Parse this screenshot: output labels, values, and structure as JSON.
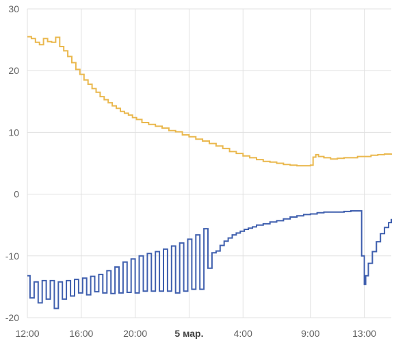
{
  "chart_data": {
    "type": "line",
    "step": true,
    "grid": true,
    "ylim": [
      -20,
      30
    ],
    "yticks": [
      -20,
      -10,
      0,
      10,
      20,
      30
    ],
    "xlim": [
      0,
      27
    ],
    "xticks": [
      {
        "x": 0,
        "label": "12:00"
      },
      {
        "x": 4,
        "label": "16:00"
      },
      {
        "x": 8,
        "label": "20:00"
      },
      {
        "x": 12,
        "label": "5 мар.",
        "bold": true
      },
      {
        "x": 16,
        "label": "4:00"
      },
      {
        "x": 21,
        "label": "9:00"
      },
      {
        "x": 25,
        "label": "13:00"
      }
    ],
    "x_unit_note": "hours from 12:00",
    "series": [
      {
        "color": "#eab84e",
        "x": [
          0,
          0.3,
          0.6,
          0.9,
          1.2,
          1.5,
          1.8,
          2.1,
          2.4,
          2.7,
          3.0,
          3.3,
          3.6,
          3.9,
          4.2,
          4.5,
          4.8,
          5.1,
          5.4,
          5.7,
          6.0,
          6.3,
          6.6,
          6.9,
          7.2,
          7.5,
          7.8,
          8.1,
          8.5,
          9.0,
          9.5,
          10.0,
          10.5,
          11.0,
          11.5,
          12.0,
          12.5,
          13.0,
          13.5,
          14.0,
          14.5,
          15.0,
          15.5,
          16.0,
          16.5,
          17.0,
          17.5,
          18.0,
          18.5,
          19.0,
          19.5,
          20.0,
          20.5,
          21.0,
          21.2,
          21.4,
          21.6,
          22.0,
          22.5,
          23.0,
          23.5,
          24.0,
          24.5,
          25.0,
          25.5,
          26.0,
          26.5,
          27.0
        ],
        "values": [
          25.5,
          25.2,
          24.6,
          24.2,
          25.2,
          24.7,
          24.6,
          25.4,
          23.9,
          23.2,
          22.3,
          21.3,
          20.2,
          19.4,
          18.5,
          17.8,
          17.1,
          16.5,
          15.8,
          15.3,
          14.8,
          14.3,
          13.9,
          13.4,
          13.1,
          12.8,
          12.4,
          12.1,
          11.6,
          11.3,
          11.0,
          10.7,
          10.3,
          10.1,
          9.6,
          9.3,
          8.9,
          8.6,
          8.2,
          7.8,
          7.4,
          6.9,
          6.6,
          6.2,
          5.9,
          5.6,
          5.3,
          5.2,
          5.0,
          4.8,
          4.7,
          4.6,
          4.6,
          4.7,
          6.0,
          6.4,
          6.1,
          5.9,
          5.7,
          5.8,
          5.9,
          5.9,
          6.1,
          6.1,
          6.3,
          6.4,
          6.5,
          6.6
        ]
      },
      {
        "color": "#3f5fae",
        "x": [
          0,
          0.2,
          0.5,
          0.8,
          1.1,
          1.4,
          1.7,
          2.0,
          2.3,
          2.6,
          2.9,
          3.2,
          3.5,
          3.8,
          4.1,
          4.4,
          4.7,
          5.0,
          5.3,
          5.6,
          5.9,
          6.2,
          6.5,
          6.8,
          7.1,
          7.4,
          7.7,
          8.0,
          8.3,
          8.6,
          8.9,
          9.2,
          9.5,
          9.8,
          10.1,
          10.4,
          10.7,
          11.0,
          11.3,
          11.6,
          11.9,
          12.2,
          12.5,
          12.8,
          13.1,
          13.4,
          13.7,
          14.0,
          14.3,
          14.6,
          14.9,
          15.2,
          15.5,
          15.8,
          16.1,
          16.4,
          16.7,
          17.0,
          17.5,
          18.0,
          18.5,
          19.0,
          19.5,
          20.0,
          20.5,
          21.0,
          21.5,
          22.0,
          22.5,
          23.0,
          23.5,
          24.0,
          24.5,
          24.8,
          25.0,
          25.1,
          25.3,
          25.6,
          25.9,
          26.2,
          26.5,
          26.8,
          27.0
        ],
        "values": [
          -13.2,
          -16.8,
          -14.2,
          -17.6,
          -14.0,
          -17.0,
          -14.0,
          -18.5,
          -14.2,
          -17.0,
          -14.0,
          -16.5,
          -13.8,
          -16.0,
          -13.6,
          -16.3,
          -13.3,
          -15.8,
          -13.0,
          -16.0,
          -12.4,
          -16.1,
          -11.8,
          -16.0,
          -11.0,
          -15.9,
          -10.5,
          -16.0,
          -10.0,
          -15.7,
          -9.6,
          -15.7,
          -9.3,
          -15.7,
          -8.9,
          -15.7,
          -8.4,
          -16.0,
          -7.9,
          -15.7,
          -7.3,
          -15.4,
          -6.6,
          -15.4,
          -5.6,
          -12.0,
          -9.5,
          -9.2,
          -8.3,
          -7.6,
          -7.1,
          -6.6,
          -6.3,
          -6.0,
          -5.7,
          -5.5,
          -5.3,
          -5.0,
          -4.8,
          -4.5,
          -4.3,
          -4.0,
          -3.7,
          -3.5,
          -3.3,
          -3.2,
          -3.0,
          -2.9,
          -2.9,
          -2.9,
          -2.8,
          -2.7,
          -2.7,
          -10.0,
          -14.6,
          -13.2,
          -11.2,
          -9.3,
          -7.7,
          -6.4,
          -5.4,
          -4.6,
          -4.0
        ]
      }
    ]
  }
}
